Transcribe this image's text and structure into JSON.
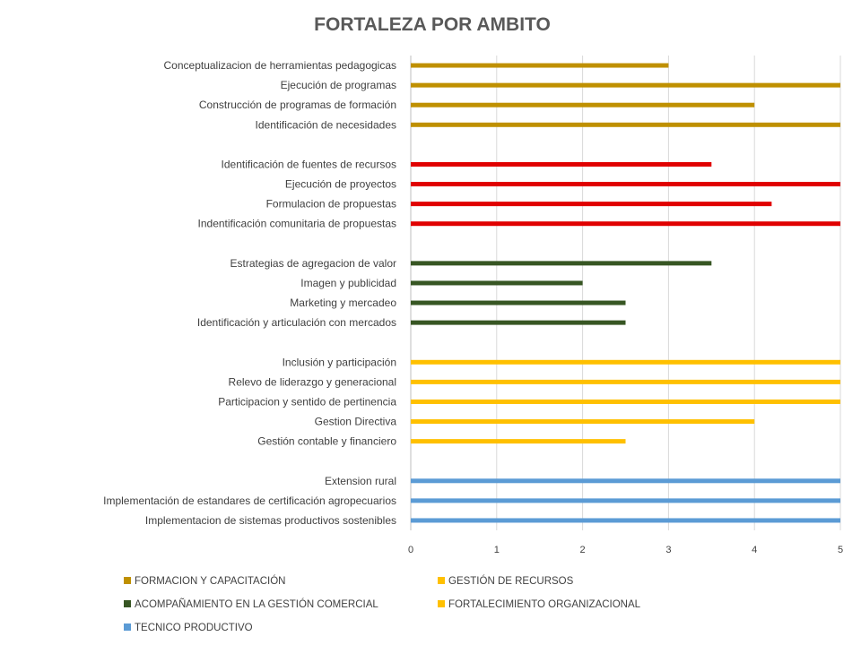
{
  "chart_data": {
    "type": "bar",
    "orientation": "horizontal",
    "title": "FORTALEZA POR AMBITO",
    "xlim": [
      0,
      5
    ],
    "x_ticks": [
      "0",
      "1",
      "2",
      "3",
      "4",
      "5"
    ],
    "grid": "vertical",
    "legend_position": "bottom",
    "groups": [
      {
        "name": "FORMACION Y CAPACITACIÓN",
        "color": "#BF9000",
        "items": [
          {
            "label": "Conceptualizacion de herramientas pedagogicas",
            "value": 3
          },
          {
            "label": "Ejecución de programas",
            "value": 5
          },
          {
            "label": "Construcción de programas de formación",
            "value": 4
          },
          {
            "label": "Identificación de necesidades",
            "value": 5
          }
        ]
      },
      {
        "name": "GESTIÓN DE RECURSOS",
        "color": "#E00000",
        "legend_color": "#FFC000",
        "items": [
          {
            "label": "Identificación de fuentes  de recursos",
            "value": 3.5
          },
          {
            "label": "Ejecución de proyectos",
            "value": 5
          },
          {
            "label": "Formulacion de propuestas",
            "value": 4.2
          },
          {
            "label": "Indentificación comunitaria de propuestas",
            "value": 5
          }
        ]
      },
      {
        "name": "ACOMPAÑAMIENTO EN LA GESTIÓN COMERCIAL",
        "color": "#375623",
        "items": [
          {
            "label": "Estrategias de agregacion de valor",
            "value": 3.5
          },
          {
            "label": "Imagen y publicidad",
            "value": 2
          },
          {
            "label": "Marketing y mercadeo",
            "value": 2.5
          },
          {
            "label": "Identificación y articulación con mercados",
            "value": 2.5
          }
        ]
      },
      {
        "name": "FORTALECIMIENTO ORGANIZACIONAL",
        "color": "#FFC000",
        "items": [
          {
            "label": "Inclusión y participación",
            "value": 5
          },
          {
            "label": "Relevo de liderazgo y generacional",
            "value": 5
          },
          {
            "label": "Participacion y sentido de pertinencia",
            "value": 5
          },
          {
            "label": "Gestion Directiva",
            "value": 4
          },
          {
            "label": "Gestión contable y financiero",
            "value": 2.5
          }
        ]
      },
      {
        "name": "TECNICO PRODUCTIVO",
        "color": "#5B9BD5",
        "items": [
          {
            "label": "Extension rural",
            "value": 5
          },
          {
            "label": "Implementación de estandares de certificación agropecuarios",
            "value": 5
          },
          {
            "label": "Implementacion de sistemas productivos sostenibles",
            "value": 5
          }
        ]
      }
    ]
  }
}
